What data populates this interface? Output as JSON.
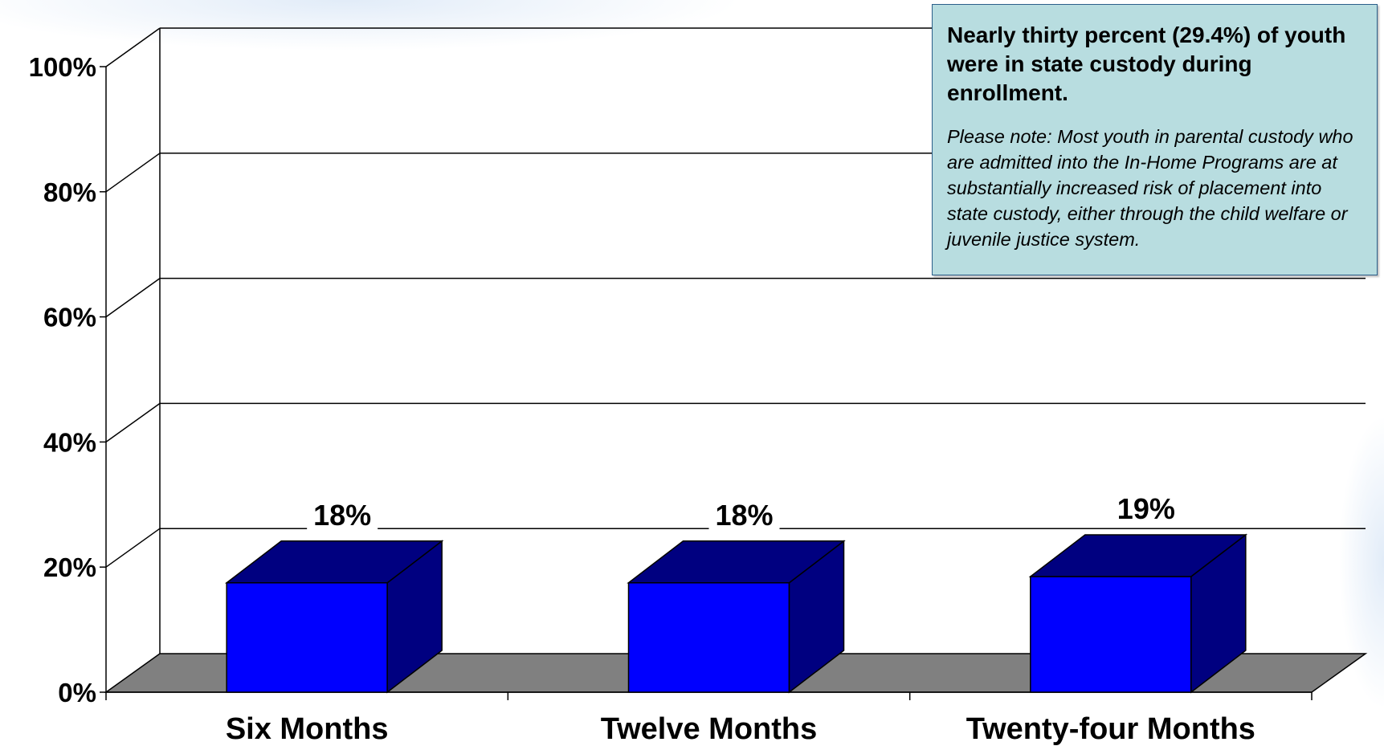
{
  "chart_data": {
    "type": "bar",
    "categories": [
      "Six Months",
      "Twelve Months",
      "Twenty-four Months"
    ],
    "values": [
      18,
      18,
      19
    ],
    "data_labels": [
      "18%",
      "18%",
      "19%"
    ],
    "ylim": [
      0,
      100
    ],
    "yticks": [
      0,
      20,
      40,
      60,
      80,
      100
    ],
    "ytick_labels": [
      "0%",
      "20%",
      "40%",
      "60%",
      "80%",
      "100%"
    ],
    "grid": true,
    "three_d": true,
    "bar_color": "#0000ff",
    "bar_side_color": "#000080",
    "floor_color": "#808080"
  },
  "note": {
    "headline": "Nearly thirty percent (29.4%) of youth were in state custody during enrollment.",
    "body": "Please note:  Most youth in parental custody who are admitted into the In-Home Programs are at substantially increased risk of placement into state custody, either through the child welfare or juvenile justice system.",
    "background": "#b8dde0"
  }
}
